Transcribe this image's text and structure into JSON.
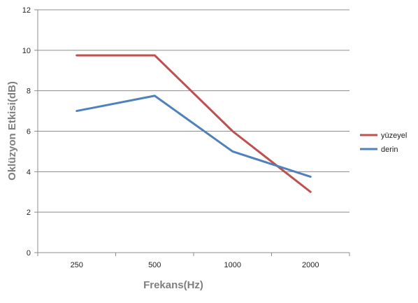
{
  "chart_data": {
    "type": "line",
    "title": "",
    "xlabel": "Frekans(Hz)",
    "ylabel": "Oklüzyon Etkisi(dB)",
    "categories": [
      "250",
      "500",
      "1000",
      "2000"
    ],
    "ylim": [
      0,
      12
    ],
    "yticks": [
      0,
      2,
      4,
      6,
      8,
      10,
      12
    ],
    "grid": true,
    "legend_position": "right",
    "series": [
      {
        "name": "yüzeyel",
        "color": "#c0504d",
        "values": [
          9.75,
          9.75,
          6.0,
          3.0
        ]
      },
      {
        "name": "derin",
        "color": "#4f81bd",
        "values": [
          7.0,
          7.75,
          5.0,
          3.75
        ]
      }
    ]
  }
}
